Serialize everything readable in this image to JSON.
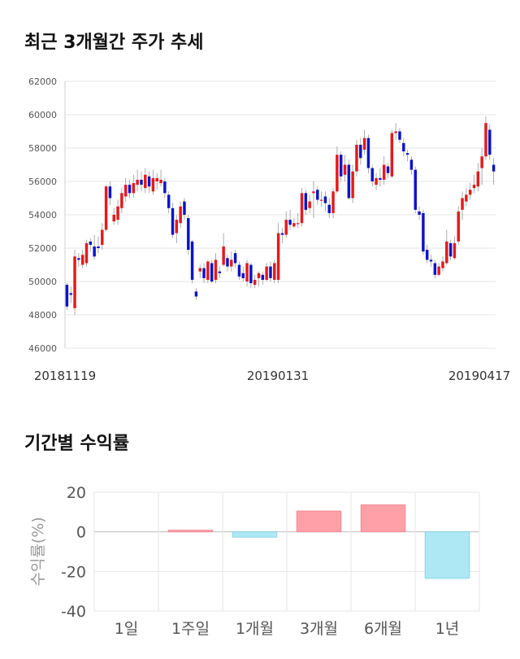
{
  "titles": {
    "price_trend": "최근 3개월간 주가 추세",
    "returns": "기간별 수익률"
  },
  "colors": {
    "up": "#e31a1c",
    "down": "#0b14c8",
    "bar_positive": "#ffa0a8",
    "bar_negative": "#aee8f4",
    "grid": "#e6e6e6"
  },
  "chart_data": [
    {
      "type": "candlestick",
      "title": "최근 3개월간 주가 추세",
      "ylim": [
        46000,
        62000
      ],
      "yticks": [
        "46000",
        "48000",
        "50000",
        "52000",
        "54000",
        "56000",
        "58000",
        "60000",
        "62000"
      ],
      "xticks": [
        "20181119",
        "20190131",
        "20190417"
      ],
      "candles": [
        [
          49800,
          48500,
          49900,
          48300
        ],
        [
          49300,
          49200,
          49700,
          48700
        ],
        [
          48400,
          51500,
          51900,
          48000
        ],
        [
          51400,
          51300,
          51700,
          50900
        ],
        [
          51000,
          51600,
          51900,
          50800
        ],
        [
          51100,
          52300,
          52500,
          50900
        ],
        [
          52400,
          52200,
          52600,
          51800
        ],
        [
          52100,
          51500,
          52800,
          51300
        ],
        [
          52100,
          52000,
          52700,
          51700
        ],
        [
          52200,
          53100,
          53500,
          51900
        ],
        [
          53100,
          55700,
          55800,
          53000
        ],
        [
          55700,
          55000,
          56000,
          54600
        ],
        [
          53600,
          54000,
          54400,
          53400
        ],
        [
          53700,
          54500,
          54900,
          53400
        ],
        [
          54400,
          55300,
          55600,
          54100
        ],
        [
          55100,
          55800,
          56200,
          54800
        ],
        [
          55800,
          55300,
          56100,
          55000
        ],
        [
          55300,
          55900,
          56400,
          55000
        ],
        [
          55800,
          56100,
          56700,
          55400
        ],
        [
          56100,
          55800,
          56600,
          55400
        ],
        [
          55600,
          56400,
          56800,
          55300
        ],
        [
          56300,
          55700,
          56600,
          55300
        ],
        [
          55400,
          56200,
          56700,
          55200
        ],
        [
          56000,
          56200,
          56500,
          55500
        ],
        [
          55900,
          56100,
          56700,
          55700
        ],
        [
          56000,
          55300,
          56200,
          55000
        ],
        [
          55200,
          54400,
          55400,
          54100
        ],
        [
          54400,
          52800,
          54700,
          52600
        ],
        [
          52900,
          53700,
          54000,
          52300
        ],
        [
          53500,
          54500,
          54800,
          53200
        ],
        [
          54800,
          54000,
          55000,
          53700
        ],
        [
          53800,
          51900,
          54000,
          51600
        ],
        [
          52400,
          50100,
          52500,
          49900
        ],
        [
          49400,
          49100,
          49600,
          48900
        ],
        [
          50600,
          50800,
          51000,
          50200
        ],
        [
          50800,
          50200,
          51100,
          49900
        ],
        [
          50100,
          51200,
          51300,
          49900
        ],
        [
          51100,
          50000,
          51300,
          49900
        ],
        [
          50100,
          51300,
          51700,
          49900
        ],
        [
          50600,
          50500,
          50900,
          50200
        ],
        [
          51000,
          52100,
          52900,
          50900
        ],
        [
          51400,
          50900,
          51600,
          50600
        ],
        [
          50900,
          51300,
          51800,
          50600
        ],
        [
          51700,
          51100,
          51900,
          50800
        ],
        [
          51000,
          50300,
          51200,
          50100
        ],
        [
          50500,
          50200,
          50900,
          50000
        ],
        [
          50000,
          51100,
          51300,
          49700
        ],
        [
          51000,
          49900,
          51100,
          49600
        ],
        [
          49800,
          50100,
          50400,
          49600
        ],
        [
          50200,
          50500,
          50600,
          49700
        ],
        [
          50400,
          50100,
          50600,
          49800
        ],
        [
          50100,
          50900,
          51100,
          50000
        ],
        [
          50900,
          50200,
          51200,
          50000
        ],
        [
          50100,
          51100,
          51300,
          49900
        ],
        [
          50100,
          52900,
          53500,
          49900
        ],
        [
          52900,
          52800,
          53200,
          52300
        ],
        [
          52800,
          53700,
          54200,
          52600
        ],
        [
          53700,
          53400,
          54300,
          53100
        ],
        [
          53300,
          53500,
          53800,
          53200
        ],
        [
          53500,
          53500,
          54100,
          53200
        ],
        [
          53500,
          55300,
          55600,
          53300
        ],
        [
          55300,
          54300,
          55500,
          54000
        ],
        [
          54400,
          54800,
          55200,
          54100
        ],
        [
          55300,
          55400,
          56000,
          53800
        ],
        [
          55500,
          54900,
          55700,
          54600
        ],
        [
          54900,
          54900,
          55400,
          54500
        ],
        [
          55100,
          54700,
          55400,
          54200
        ],
        [
          54600,
          54100,
          55000,
          53800
        ],
        [
          54100,
          55400,
          55600,
          53800
        ],
        [
          55400,
          57600,
          58100,
          55300
        ],
        [
          57600,
          56300,
          57800,
          56000
        ],
        [
          56400,
          57000,
          57600,
          56000
        ],
        [
          57000,
          55000,
          57300,
          54900
        ],
        [
          55000,
          56600,
          57000,
          54700
        ],
        [
          56600,
          58200,
          58500,
          56300
        ],
        [
          58200,
          57400,
          58600,
          57000
        ],
        [
          57900,
          58600,
          59100,
          57600
        ],
        [
          58600,
          56800,
          58800,
          56500
        ],
        [
          56800,
          56000,
          57000,
          55700
        ],
        [
          55800,
          56200,
          56500,
          55500
        ],
        [
          56200,
          56100,
          56800,
          55700
        ],
        [
          56100,
          57000,
          57500,
          55800
        ],
        [
          56900,
          56500,
          57100,
          56200
        ],
        [
          56300,
          58900,
          59100,
          56200
        ],
        [
          58900,
          59000,
          59500,
          58500
        ],
        [
          59000,
          58500,
          59200,
          58300
        ],
        [
          58300,
          57800,
          58600,
          57500
        ],
        [
          57700,
          57600,
          57900,
          57200
        ],
        [
          57300,
          56700,
          57500,
          56400
        ],
        [
          56700,
          54300,
          56900,
          54100
        ],
        [
          54200,
          54000,
          54500,
          53700
        ],
        [
          54100,
          51800,
          54300,
          51600
        ],
        [
          51900,
          51300,
          52200,
          51100
        ],
        [
          51300,
          51200,
          51600,
          50900
        ],
        [
          51100,
          50400,
          51300,
          50200
        ],
        [
          50400,
          50900,
          51100,
          50300
        ],
        [
          50800,
          51200,
          51500,
          50600
        ],
        [
          51100,
          52400,
          53100,
          51000
        ],
        [
          52300,
          51500,
          52500,
          51300
        ],
        [
          51400,
          52300,
          52700,
          51300
        ],
        [
          52400,
          54200,
          54500,
          52200
        ],
        [
          54300,
          55000,
          55400,
          53700
        ],
        [
          54800,
          55200,
          55600,
          54500
        ],
        [
          55200,
          55500,
          55900,
          54900
        ],
        [
          55600,
          55800,
          56400,
          55300
        ],
        [
          55700,
          56600,
          57100,
          55400
        ],
        [
          56800,
          57500,
          58000,
          55800
        ],
        [
          57500,
          59500,
          59900,
          57300
        ],
        [
          59100,
          57600,
          59400,
          57300
        ],
        [
          57000,
          56600,
          57400,
          55800
        ]
      ]
    },
    {
      "type": "bar",
      "categories": [
        "1일",
        "1주일",
        "1개월",
        "3개월",
        "6개월",
        "1년"
      ],
      "values": [
        0.0,
        0.8,
        -2.7,
        10.5,
        13.6,
        -23.5
      ],
      "ylabel": "수익률(%)",
      "ylim": [
        -40,
        20
      ],
      "yticks": [
        "-40",
        "-20",
        "0",
        "20"
      ]
    }
  ]
}
